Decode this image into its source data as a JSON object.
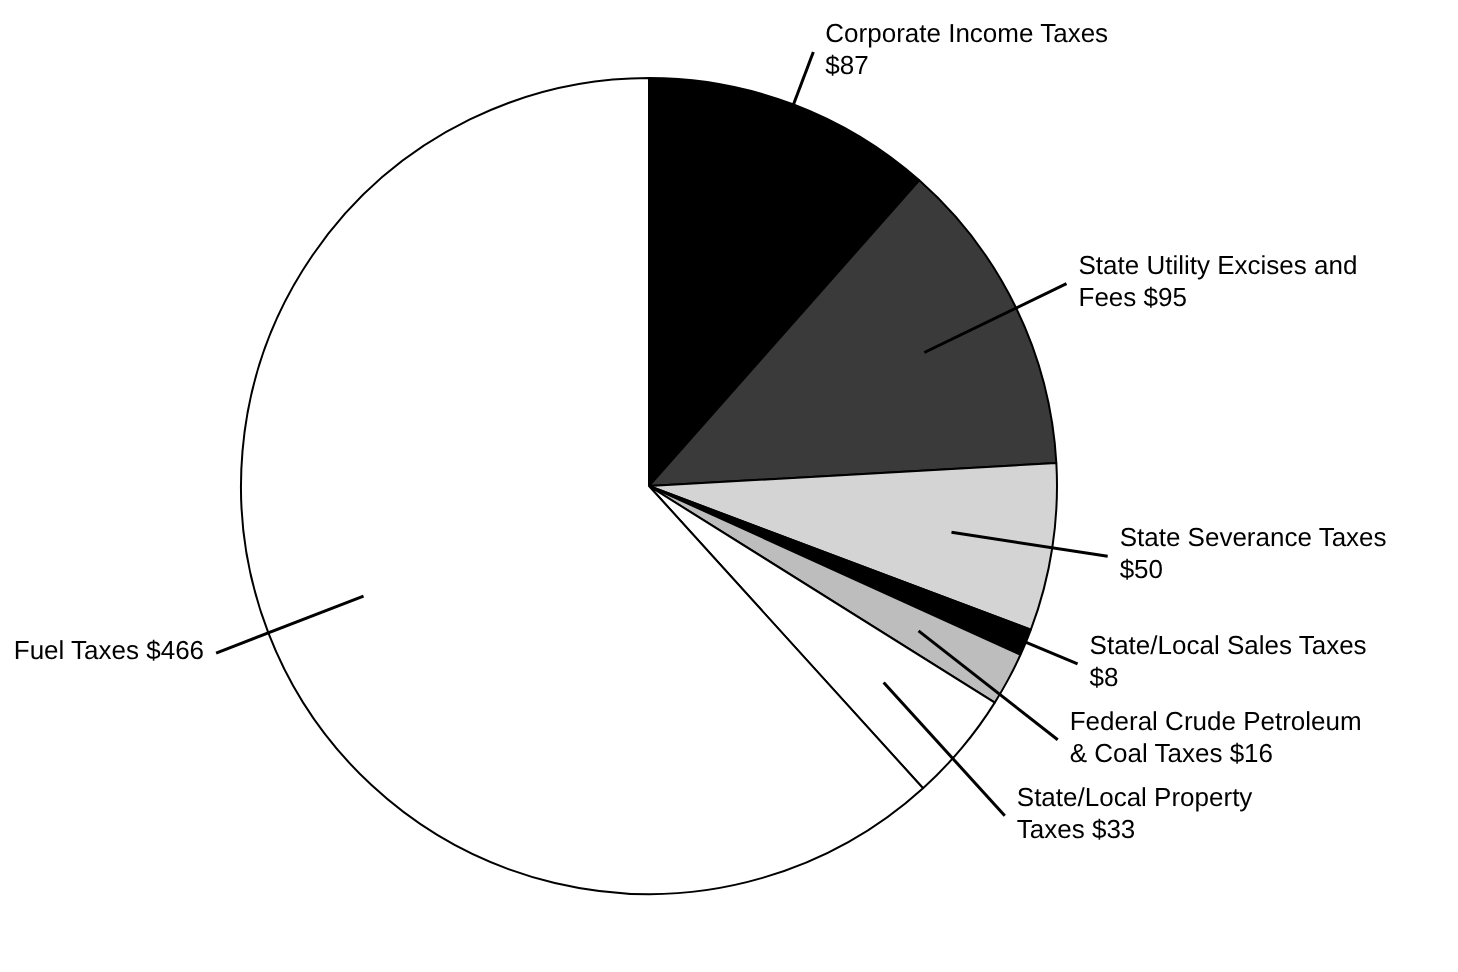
{
  "chart_data": {
    "type": "pie",
    "categories": [
      "Corporate Income Taxes",
      "State Utility Excises and Fees",
      "State Severance Taxes",
      "State/Local Sales Taxes",
      "Federal Crude Petroleum & Coal Taxes",
      "State/Local Property Taxes",
      "Fuel Taxes"
    ],
    "values": [
      87,
      95,
      50,
      8,
      16,
      33,
      466
    ],
    "value_labels": [
      "$87",
      "$95",
      "$50",
      "$8",
      "$16",
      "$33",
      "$466"
    ],
    "colors": [
      "#000000",
      "#3a3a3a",
      "#d4d4d4",
      "#000000",
      "#bdbdbd",
      "#ffffff",
      "#ffffff"
    ],
    "legend": false
  }
}
